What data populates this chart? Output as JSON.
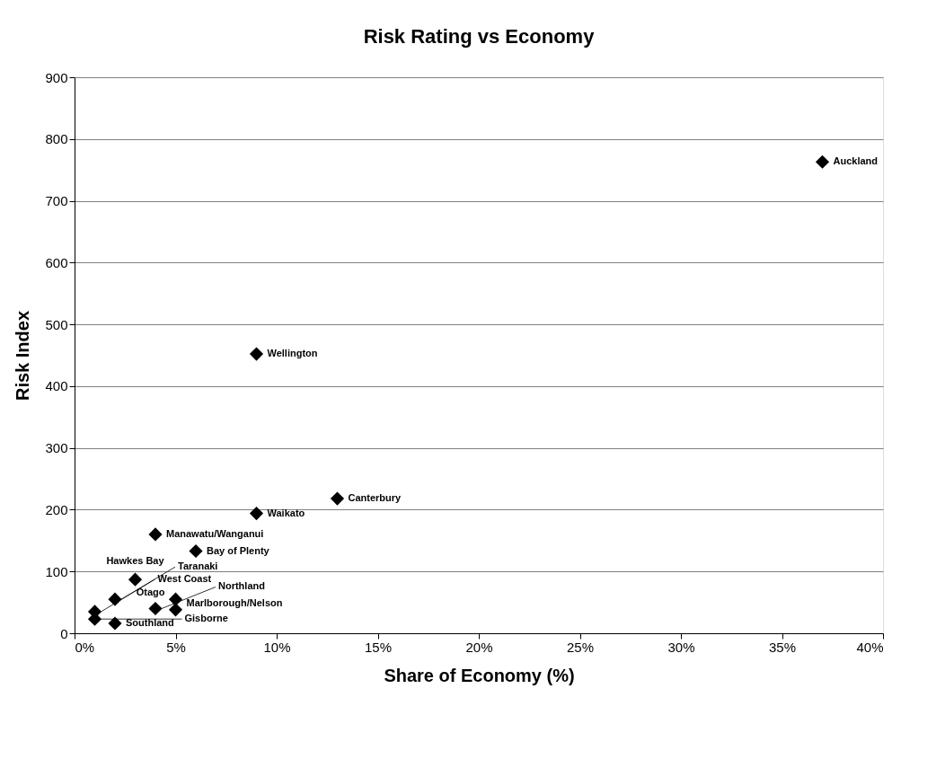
{
  "chart_data": {
    "type": "scatter",
    "title": "Risk Rating vs Economy",
    "xlabel": "Share of Economy (%)",
    "ylabel": "Risk Index",
    "x": [
      37,
      9,
      13,
      9,
      4,
      6,
      3,
      2,
      5,
      4,
      5,
      1,
      1,
      2
    ],
    "series": [
      {
        "color": "#000000",
        "values": [
          763,
          452,
          218,
          194,
          160,
          133,
          87,
          55,
          55,
          40,
          38,
          35,
          23,
          16
        ]
      }
    ],
    "annotations": [
      {
        "text": "Auckland",
        "x": 37,
        "y": 763
      },
      {
        "text": "Wellington",
        "x": 9,
        "y": 452
      },
      {
        "text": "Canterbury",
        "x": 13,
        "y": 218
      },
      {
        "text": "Waikato",
        "x": 9,
        "y": 194
      },
      {
        "text": "Manawatu/Wanganui",
        "x": 4,
        "y": 160
      },
      {
        "text": "Bay of Plenty",
        "x": 6,
        "y": 133
      },
      {
        "text": "Hawkes Bay",
        "x": 3,
        "y": 87
      },
      {
        "text": "Taranaki",
        "x": 2,
        "y": 55
      },
      {
        "text": "Otago",
        "x": 5,
        "y": 55
      },
      {
        "text": "Northland",
        "x": 4,
        "y": 40
      },
      {
        "text": "Marlborough/Nelson",
        "x": 5,
        "y": 38
      },
      {
        "text": "West Coast",
        "x": 1,
        "y": 35
      },
      {
        "text": "Gisborne",
        "x": 1,
        "y": 23
      },
      {
        "text": "Southland",
        "x": 2,
        "y": 16
      }
    ],
    "xlim": [
      0,
      40
    ],
    "xticks": [
      {
        "value": 0,
        "label": "0%"
      },
      {
        "value": 5,
        "label": "5%"
      },
      {
        "value": 10,
        "label": "10%"
      },
      {
        "value": 15,
        "label": "15%"
      },
      {
        "value": 20,
        "label": "20%"
      },
      {
        "value": 25,
        "label": "25%"
      },
      {
        "value": 30,
        "label": "30%"
      },
      {
        "value": 35,
        "label": "35%"
      },
      {
        "value": 40,
        "label": "40%"
      }
    ],
    "ylim": [
      0,
      900
    ],
    "yticks": [
      0,
      100,
      200,
      300,
      400,
      500,
      600,
      700,
      800,
      900
    ],
    "grid": "y",
    "marker": "diamond"
  }
}
